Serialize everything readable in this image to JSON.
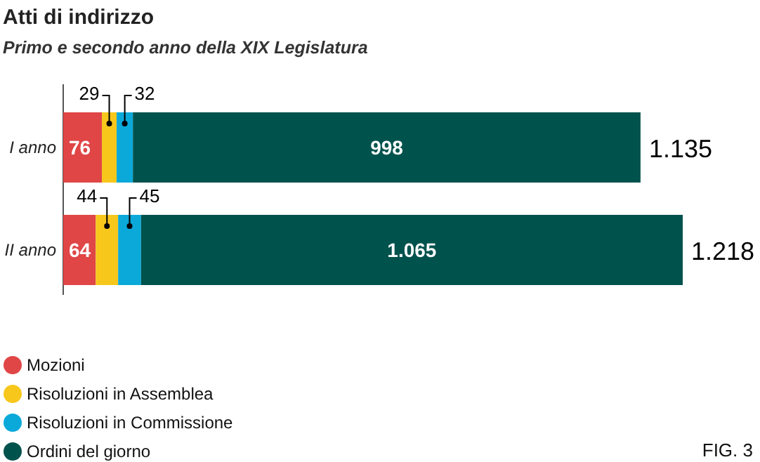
{
  "chart_data": {
    "type": "bar",
    "orientation": "horizontal",
    "stacked": true,
    "title": "Atti di indirizzo",
    "subtitle": "Primo e secondo anno della XIX Legislatura",
    "categories": [
      "I anno",
      "II anno"
    ],
    "series": [
      {
        "name": "Mozioni",
        "color": "#e04646",
        "values": [
          76,
          64
        ],
        "value_labels": [
          "76",
          "64"
        ]
      },
      {
        "name": "Risoluzioni in Assemblea",
        "color": "#f7c71c",
        "values": [
          29,
          44
        ],
        "value_labels": [
          "29",
          "44"
        ]
      },
      {
        "name": "Risoluzioni in Commissione",
        "color": "#0aa9d9",
        "values": [
          32,
          45
        ],
        "value_labels": [
          "32",
          "45"
        ]
      },
      {
        "name": "Ordini del giorno",
        "color": "#00524d",
        "values": [
          998,
          1065
        ],
        "value_labels": [
          "998",
          "1.065"
        ]
      }
    ],
    "totals": [
      "1.135",
      "1.218"
    ],
    "legend": "bottom left",
    "annotations": [
      "FIG. 3"
    ]
  }
}
